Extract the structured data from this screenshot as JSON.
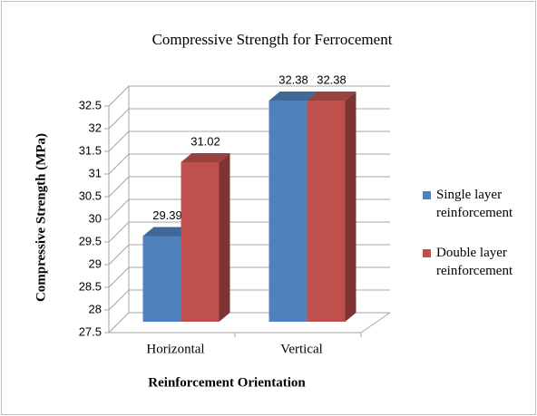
{
  "chart_data": {
    "type": "bar3d",
    "title": "Compressive Strength for Ferrocement",
    "y_label": "Compressive Strength (MPa)",
    "x_label": "Reinforcement Orientation",
    "categories": [
      "Horizontal",
      "Vertical"
    ],
    "series": [
      {
        "name": "Single layer reinforcement",
        "color": "#4f81bd",
        "values": [
          29.39,
          32.38
        ]
      },
      {
        "name": "Double layer reinforcement",
        "color": "#c0504d",
        "values": [
          31.02,
          32.38
        ]
      }
    ],
    "ylim": [
      27.5,
      32.5
    ],
    "yticks": [
      27.5,
      28,
      28.5,
      29,
      29.5,
      30,
      30.5,
      31,
      31.5,
      32,
      32.5
    ],
    "grid": true,
    "legend": "right"
  }
}
